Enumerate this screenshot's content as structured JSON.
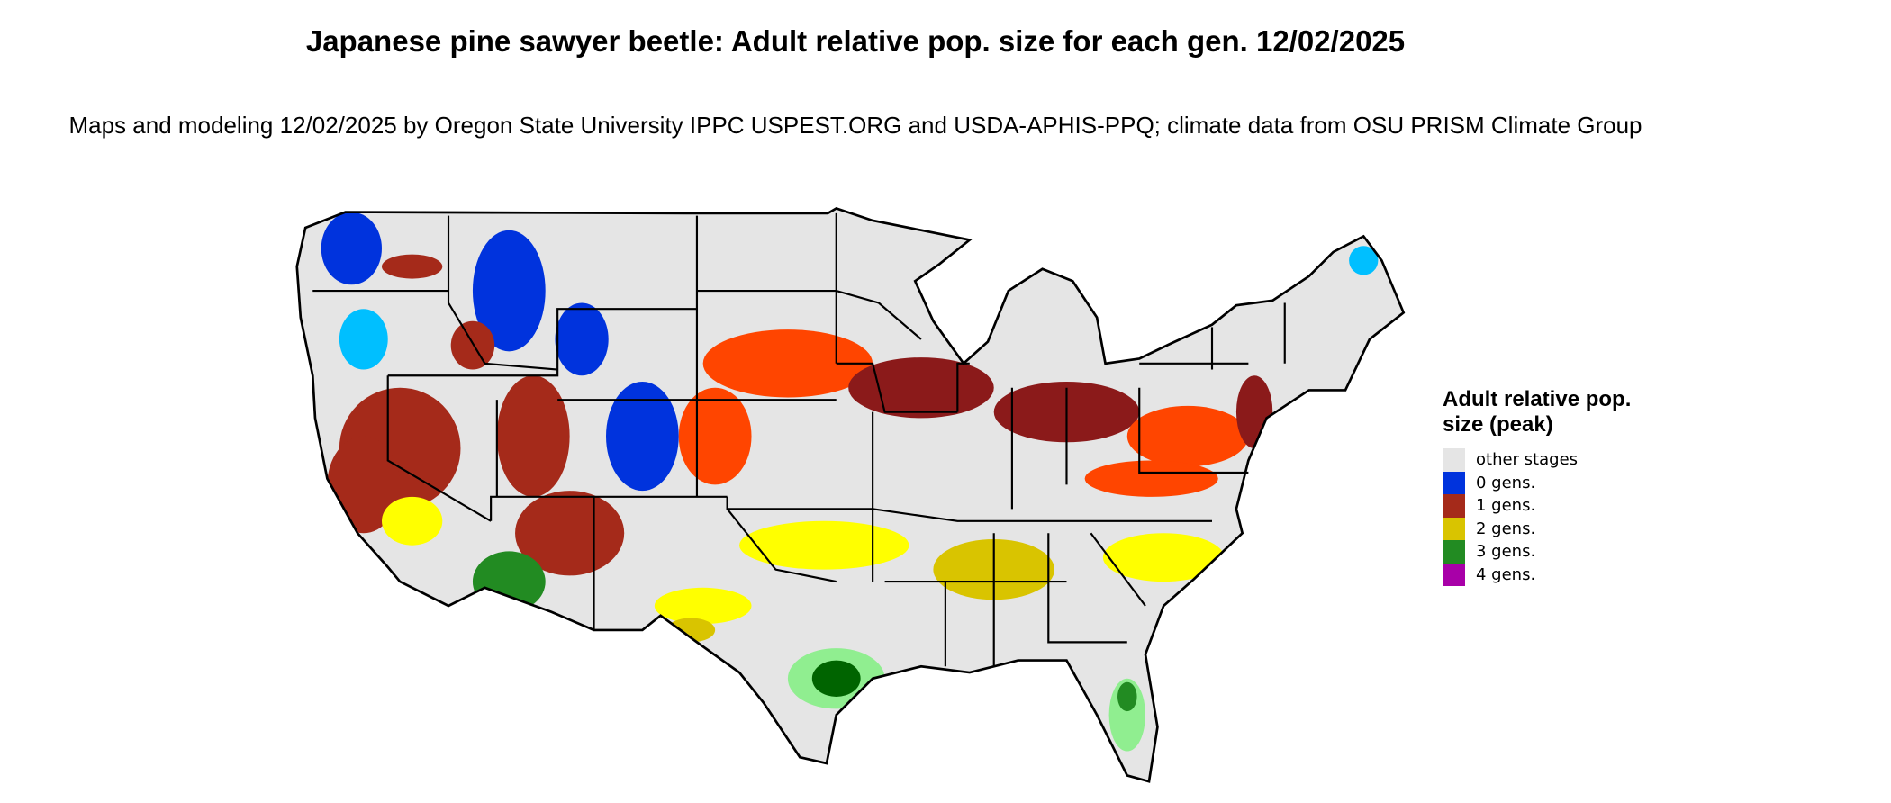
{
  "title": "Japanese pine sawyer beetle: Adult relative pop. size for each gen. 12/02/2025",
  "subtitle": "Maps and modeling 12/02/2025 by Oregon State University IPPC USPEST.ORG and USDA-APHIS-PPQ; climate data from OSU PRISM Climate Group",
  "legend": {
    "title": "Adult relative pop. size (peak)",
    "items": [
      {
        "label": "other stages",
        "color": "#e5e5e5"
      },
      {
        "label": "0 gens.",
        "color": "#0033dd"
      },
      {
        "label": "1 gens.",
        "color": "#a52a1a"
      },
      {
        "label": "2 gens.",
        "color": "#d9c400"
      },
      {
        "label": "3 gens.",
        "color": "#228b22"
      },
      {
        "label": "4 gens.",
        "color": "#a800a8"
      }
    ]
  },
  "map": {
    "region": "Contiguous United States",
    "background_color": "#e5e5e5",
    "boundary_color": "#000000"
  }
}
